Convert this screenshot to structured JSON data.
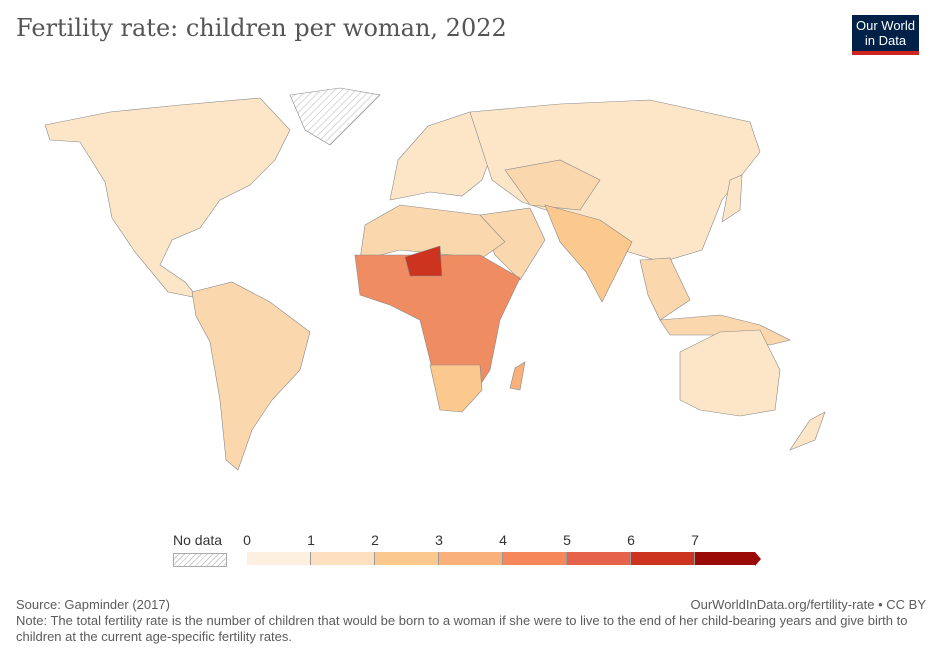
{
  "title": "Fertility rate: children per woman, 2022",
  "logo": {
    "line1": "Our World",
    "line2": "in Data"
  },
  "legend": {
    "no_data": "No data",
    "ticks": [
      "0",
      "1",
      "2",
      "3",
      "4",
      "5",
      "6",
      "7"
    ],
    "colors": [
      "#fef0e1",
      "#fde0c0",
      "#fbc88e",
      "#f9b07a",
      "#f5875a",
      "#e5634a",
      "#cc3420",
      "#9a0a06"
    ]
  },
  "footer": {
    "source": "Source: Gapminder (2017)",
    "url": "OurWorldInData.org/fertility-rate • CC BY",
    "note": "Note: The total fertility rate is the number of children that would be born to a woman if she were to live to the end of her child-bearing years and give birth to children at the current age-specific fertility rates."
  }
}
